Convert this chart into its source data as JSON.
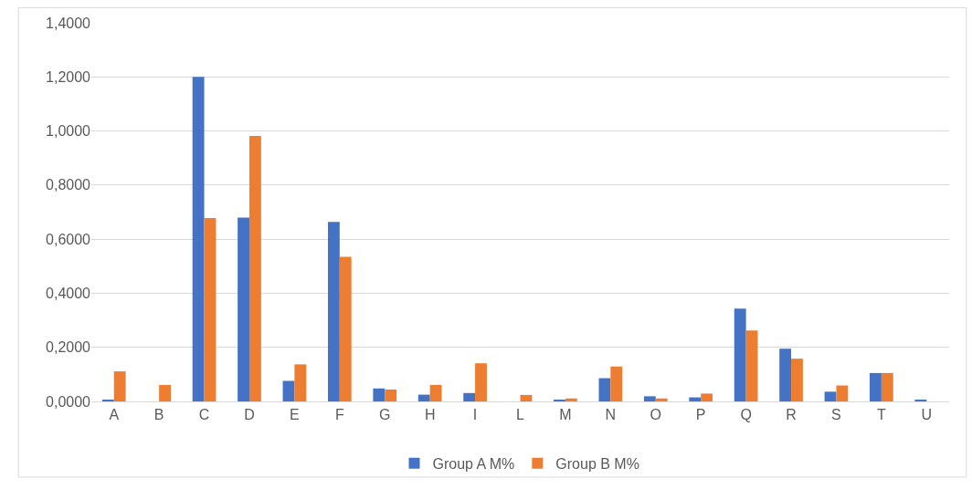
{
  "chart_data": {
    "type": "bar",
    "categories": [
      "A",
      "B",
      "C",
      "D",
      "E",
      "F",
      "G",
      "H",
      "I",
      "L",
      "M",
      "N",
      "O",
      "P",
      "Q",
      "R",
      "S",
      "T",
      "U"
    ],
    "series": [
      {
        "name": "Group A M%",
        "color": "#4472c4",
        "values": [
          0.004,
          null,
          1.2,
          0.68,
          0.076,
          0.664,
          0.048,
          0.025,
          0.031,
          null,
          0.004,
          0.086,
          0.019,
          0.015,
          0.343,
          0.195,
          0.036,
          0.105,
          0.004
        ]
      },
      {
        "name": "Group B M%",
        "color": "#ed7d31",
        "values": [
          0.111,
          0.061,
          0.678,
          0.982,
          0.137,
          0.535,
          0.044,
          0.061,
          0.141,
          0.024,
          0.011,
          0.129,
          0.011,
          0.029,
          0.262,
          0.158,
          0.059,
          0.105,
          null
        ]
      }
    ],
    "ylim": [
      0,
      1.4
    ],
    "yticks": [
      {
        "value": 0,
        "label": "0,0000"
      },
      {
        "value": 0.2,
        "label": "0,2000"
      },
      {
        "value": 0.4,
        "label": "0,4000"
      },
      {
        "value": 0.6,
        "label": "0,6000"
      },
      {
        "value": 0.8,
        "label": "0,8000"
      },
      {
        "value": 1.0,
        "label": "1,0000"
      },
      {
        "value": 1.2,
        "label": "1,2000"
      },
      {
        "value": 1.4,
        "label": "1,4000"
      }
    ],
    "grid": "y",
    "legend": "bottom"
  }
}
